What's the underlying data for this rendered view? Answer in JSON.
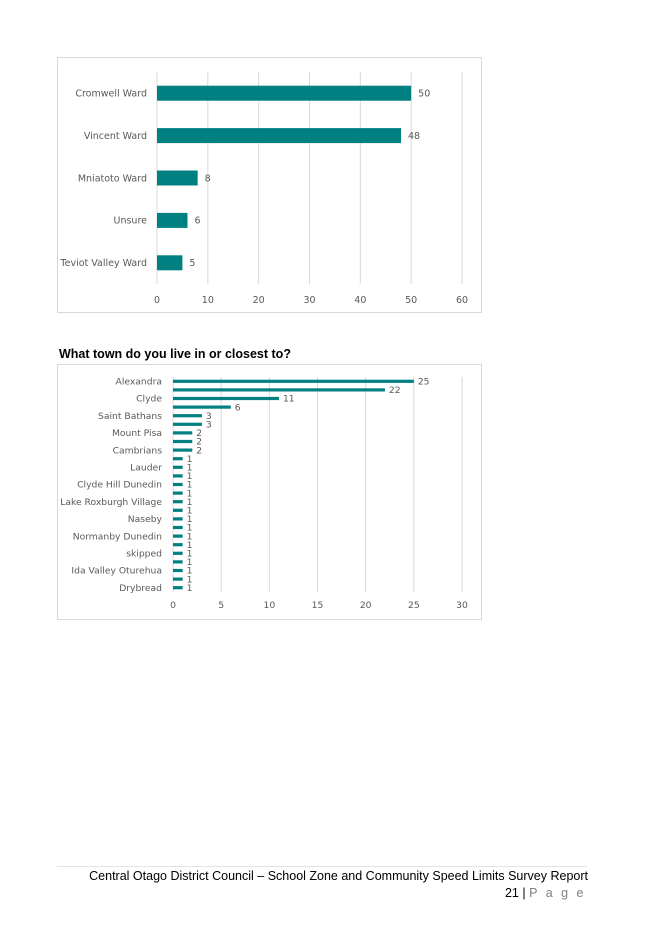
{
  "chart_data": [
    {
      "type": "bar",
      "orientation": "horizontal",
      "categories": [
        "Cromwell Ward",
        "Vincent Ward",
        "Mniatoto Ward",
        "Unsure",
        "Teviot Valley Ward"
      ],
      "values": [
        50,
        48,
        8,
        6,
        5
      ],
      "title": "",
      "xlabel": "",
      "ylabel": "",
      "xlim": [
        0,
        60
      ],
      "ticks": [
        0,
        10,
        20,
        30,
        40,
        50,
        60
      ],
      "grid": "vertical",
      "bar_color": "#008080",
      "data_labels": true
    },
    {
      "type": "bar",
      "orientation": "horizontal",
      "categories": [
        "Alexandra",
        "",
        "Clyde",
        "",
        "Saint Bathans",
        "",
        "Mount Pisa",
        "",
        "Cambrians",
        "",
        "Lauder",
        "",
        "Clyde Hill Dunedin",
        "",
        "Lake Roxburgh Village",
        "",
        "Naseby",
        "",
        "Normanby Dunedin",
        "",
        "skipped",
        "",
        "Ida Valley Oturehua",
        "",
        "Drybread"
      ],
      "values": [
        25,
        22,
        11,
        6,
        3,
        3,
        2,
        2,
        2,
        1,
        1,
        1,
        1,
        1,
        1,
        1,
        1,
        1,
        1,
        1,
        1,
        1,
        1,
        1,
        1
      ],
      "title": "What town do you live in or closest to?",
      "xlabel": "",
      "ylabel": "",
      "xlim": [
        0,
        30
      ],
      "ticks": [
        0,
        5,
        10,
        15,
        20,
        25,
        30
      ],
      "grid": "vertical",
      "bar_color": "#008080",
      "data_labels": true
    }
  ],
  "footer": {
    "report_title": "Central Otago District Council – School Zone and Community Speed Limits Survey Report",
    "page_number": "21",
    "separator": "|",
    "page_word": "P a g e"
  }
}
